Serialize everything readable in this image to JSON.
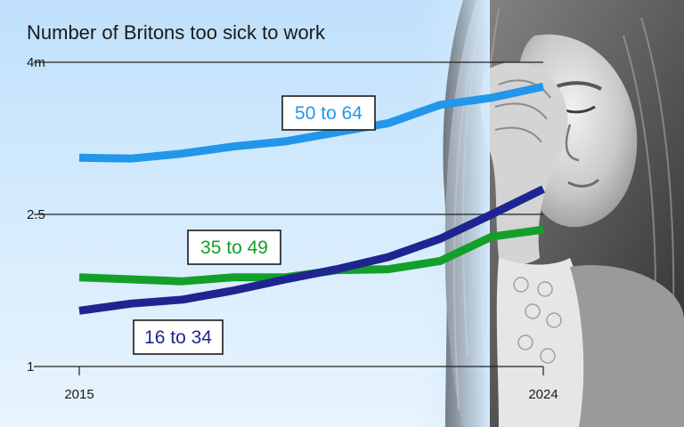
{
  "chart_data": {
    "type": "line",
    "title": "Number of Britons too sick to work",
    "x": [
      2015,
      2016,
      2017,
      2018,
      2019,
      2020,
      2021,
      2022,
      2023,
      2024
    ],
    "x_tick_labels": [
      "2015",
      "2024"
    ],
    "y_ticks": [
      1,
      2.5,
      4
    ],
    "y_tick_labels": [
      "1",
      "2.5",
      "4m"
    ],
    "ylim": [
      1,
      4
    ],
    "grid": true,
    "series": [
      {
        "name": "50 to 64",
        "color": "#2196ea",
        "values": [
          3.06,
          3.05,
          3.1,
          3.17,
          3.22,
          3.31,
          3.4,
          3.58,
          3.65,
          3.76
        ]
      },
      {
        "name": "35 to 49",
        "color": "#12a02a",
        "values": [
          1.88,
          1.86,
          1.84,
          1.88,
          1.88,
          1.95,
          1.96,
          2.04,
          2.28,
          2.35
        ]
      },
      {
        "name": "16 to 34",
        "color": "#1e2590",
        "values": [
          1.55,
          1.62,
          1.66,
          1.75,
          1.86,
          1.96,
          2.08,
          2.26,
          2.5,
          2.75
        ]
      }
    ]
  }
}
